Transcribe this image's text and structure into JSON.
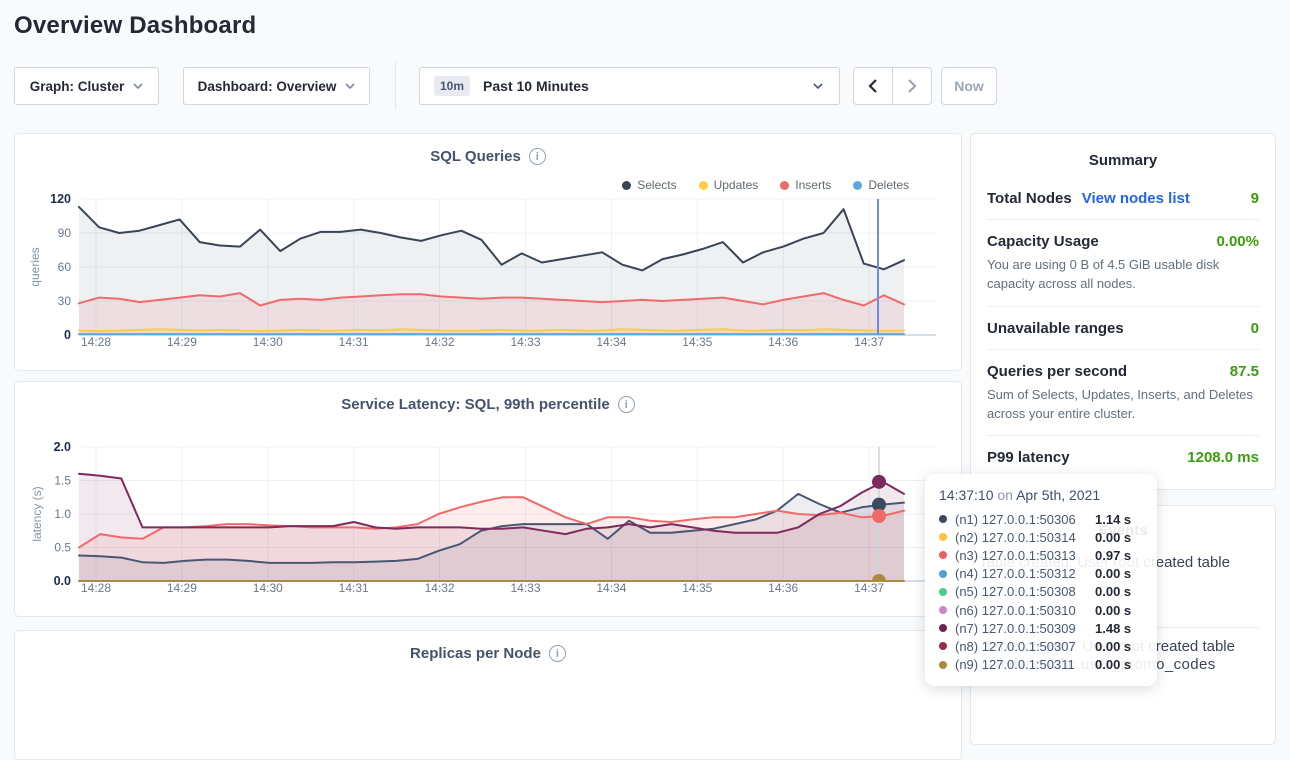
{
  "page": {
    "title": "Overview Dashboard"
  },
  "controls": {
    "graph_dropdown": {
      "text": "Graph: Cluster"
    },
    "dashboard_dropdown": {
      "text": "Dashboard: Overview"
    },
    "time_picker": {
      "badge": "10m",
      "label": "Past 10 Minutes"
    },
    "now_label": "Now"
  },
  "charts": {
    "replicas": {
      "title": "Replicas per Node"
    }
  },
  "chart_data": [
    {
      "type": "area",
      "title": "SQL Queries",
      "ylabel": "queries",
      "ylim": [
        0,
        120
      ],
      "yticks": [
        0,
        30,
        60,
        90,
        120
      ],
      "ytick_labels": [
        "0",
        "30",
        "60",
        "90",
        "120"
      ],
      "x_ticks": [
        "14:28",
        "14:29",
        "14:30",
        "14:31",
        "14:32",
        "14:33",
        "14:34",
        "14:35",
        "14:36",
        "14:37"
      ],
      "legend_position": "top-right",
      "grid": true,
      "hover_time": "14:37:10",
      "series": [
        {
          "name": "Selects",
          "color": "#394455",
          "fill": "rgba(57,68,85,0.08)",
          "z": 4,
          "values": [
            113,
            95,
            90,
            92,
            97,
            102,
            82,
            79,
            78,
            93,
            74,
            85,
            91,
            91,
            93,
            90,
            86,
            83,
            88,
            92,
            84,
            62,
            72,
            64,
            67,
            70,
            73,
            62,
            57,
            67,
            71,
            76,
            82,
            64,
            73,
            78,
            85,
            90,
            111,
            63,
            58,
            66
          ]
        },
        {
          "name": "Updates",
          "color": "#ffcd40",
          "fill": "rgba(255,205,64,0.15)",
          "z": 3,
          "values": [
            4,
            3.5,
            4,
            4.5,
            5,
            4.5,
            4,
            4.5,
            4,
            3.5,
            4,
            4.5,
            4,
            4,
            4.5,
            4,
            5,
            4.5,
            4,
            4,
            4,
            4.5,
            4,
            4,
            4.5,
            4,
            4,
            5,
            4.5,
            4,
            4,
            4.5,
            5,
            4,
            4,
            4.5,
            4,
            5,
            4.5,
            4,
            4,
            4
          ]
        },
        {
          "name": "Inserts",
          "color": "#f16a6a",
          "fill": "rgba(241,106,106,0.12)",
          "z": 2,
          "values": [
            28,
            33,
            32,
            29,
            31,
            33,
            35,
            34,
            37,
            26,
            31,
            32,
            31,
            33,
            34,
            35,
            36,
            36,
            34,
            33,
            32,
            33,
            33,
            32,
            31,
            30,
            29,
            30,
            31,
            30,
            31,
            32,
            33,
            30,
            27,
            31,
            34,
            37,
            31,
            26,
            35,
            27
          ]
        },
        {
          "name": "Deletes",
          "color": "#5ba8df",
          "fill": "none",
          "z": 1,
          "values": [
            0.8,
            0.8,
            0.8,
            0.8,
            0.8,
            0.8,
            0.8,
            0.8,
            0.8,
            0.8,
            0.8,
            0.8,
            0.8,
            0.8,
            0.8,
            0.8,
            0.8,
            0.8,
            0.8,
            0.8,
            0.8,
            0.8,
            0.8,
            0.8,
            0.8,
            0.8,
            0.8,
            0.8,
            0.8,
            0.8,
            0.8,
            0.8,
            0.8,
            0.8,
            0.8,
            0.8,
            0.8,
            0.8,
            0.8,
            0.8,
            0.8,
            0.8
          ]
        }
      ]
    },
    {
      "type": "area",
      "title": "Service Latency: SQL, 99th percentile",
      "ylabel": "latency (s)",
      "ylim": [
        0,
        2.0
      ],
      "yticks": [
        0,
        0.5,
        1.0,
        1.5,
        2.0
      ],
      "ytick_labels": [
        "0.0",
        "0.5",
        "1.0",
        "1.5",
        "2.0"
      ],
      "x_ticks": [
        "14:28",
        "14:29",
        "14:30",
        "14:31",
        "14:32",
        "14:33",
        "14:34",
        "14:35",
        "14:36",
        "14:37"
      ],
      "grid": true,
      "hover_time": "14:37:10",
      "series": [
        {
          "name": "(n1) 127.0.0.1:50306",
          "color": "#475872",
          "fill": "rgba(71,88,114,0.10)",
          "z": 2,
          "values": [
            0.38,
            0.37,
            0.35,
            0.28,
            0.27,
            0.3,
            0.32,
            0.32,
            0.3,
            0.27,
            0.27,
            0.27,
            0.28,
            0.28,
            0.29,
            0.3,
            0.33,
            0.45,
            0.55,
            0.75,
            0.82,
            0.85,
            0.85,
            0.85,
            0.85,
            0.63,
            0.9,
            0.72,
            0.72,
            0.75,
            0.78,
            0.85,
            0.92,
            1.05,
            1.3,
            1.15,
            1.02,
            1.1,
            1.14,
            1.17
          ]
        },
        {
          "name": "(n3) 127.0.0.1:50313",
          "color": "#f16a6a",
          "fill": "rgba(241,106,106,0.12)",
          "z": 3,
          "values": [
            0.5,
            0.7,
            0.65,
            0.63,
            0.8,
            0.8,
            0.82,
            0.85,
            0.85,
            0.83,
            0.82,
            0.8,
            0.8,
            0.8,
            0.78,
            0.8,
            0.85,
            1.0,
            1.1,
            1.18,
            1.25,
            1.25,
            1.1,
            0.95,
            0.85,
            0.95,
            0.95,
            0.9,
            0.88,
            0.92,
            0.95,
            0.95,
            1.0,
            1.05,
            1.0,
            0.98,
            1.02,
            0.95,
            0.97,
            1.05
          ]
        },
        {
          "name": "(n9) 127.0.0.1:50311",
          "color": "#ab8a3e",
          "fill": "none",
          "z": 1,
          "values": [
            0,
            0,
            0,
            0,
            0,
            0,
            0,
            0,
            0,
            0,
            0,
            0,
            0,
            0,
            0,
            0,
            0,
            0,
            0,
            0,
            0,
            0,
            0,
            0,
            0,
            0,
            0,
            0,
            0,
            0,
            0,
            0,
            0,
            0,
            0,
            0,
            0,
            0,
            0,
            0
          ]
        },
        {
          "name": "(n7) 127.0.0.1:50309",
          "color": "#7d2a5d",
          "fill": "rgba(125,42,93,0.10)",
          "z": 4,
          "values": [
            1.6,
            1.57,
            1.53,
            0.8,
            0.8,
            0.8,
            0.8,
            0.8,
            0.8,
            0.8,
            0.82,
            0.82,
            0.82,
            0.88,
            0.8,
            0.78,
            0.8,
            0.8,
            0.8,
            0.78,
            0.78,
            0.8,
            0.75,
            0.7,
            0.78,
            0.8,
            0.85,
            0.8,
            0.85,
            0.8,
            0.75,
            0.72,
            0.72,
            0.72,
            0.8,
            1.0,
            1.12,
            1.32,
            1.48,
            1.3
          ]
        }
      ],
      "hover_dots": [
        {
          "series": "(n7) 127.0.0.1:50309",
          "value": 1.48,
          "color": "#7d2a5d"
        },
        {
          "series": "(n1) 127.0.0.1:50306",
          "value": 1.14,
          "color": "#3b4a63"
        },
        {
          "series": "(n3) 127.0.0.1:50313",
          "value": 0.97,
          "color": "#f16a6a"
        },
        {
          "series": "(n9) 127.0.0.1:50311",
          "value": 0.0,
          "color": "#ab8a3e"
        }
      ]
    }
  ],
  "summary": {
    "title": "Summary",
    "rows": [
      {
        "label": "Total Nodes",
        "link": "View nodes list",
        "value": "9"
      },
      {
        "label": "Capacity Usage",
        "value": "0.00%",
        "description": "You are using 0 B of 4.5 GiB usable disk capacity across all nodes."
      },
      {
        "label": "Unavailable ranges",
        "value": "0"
      },
      {
        "label": "Queries per second",
        "value": "87.5",
        "description": "Sum of Selects, Updates, Inserts, and Deletes across your entire cluster."
      },
      {
        "label": "P99 latency",
        "value": "1208.0 ms"
      }
    ],
    "value_color": "#3a9e0c",
    "link_color": "#2364e8"
  },
  "events": {
    "title": "Events",
    "items": [
      {
        "lines": [
          "Table created: User root created table"
        ]
      },
      {
        "lines": [
          "Table created: User root created table",
          "movr.public.user_promo_codes"
        ]
      }
    ]
  },
  "tooltip": {
    "time": "14:37:10",
    "on_word": "on",
    "date": "Apr 5th, 2021",
    "rows": [
      {
        "node": "(n1) 127.0.0.1:50306",
        "value": "1.14 s",
        "color": "#3b4a63"
      },
      {
        "node": "(n2) 127.0.0.1:50314",
        "value": "0.00 s",
        "color": "#ffc13b"
      },
      {
        "node": "(n3) 127.0.0.1:50313",
        "value": "0.97 s",
        "color": "#ef5e5e"
      },
      {
        "node": "(n4) 127.0.0.1:50312",
        "value": "0.00 s",
        "color": "#509ed9"
      },
      {
        "node": "(n5) 127.0.0.1:50308",
        "value": "0.00 s",
        "color": "#3fd089"
      },
      {
        "node": "(n6) 127.0.0.1:50310",
        "value": "0.00 s",
        "color": "#cf86c6"
      },
      {
        "node": "(n7) 127.0.0.1:50309",
        "value": "1.48 s",
        "color": "#702253"
      },
      {
        "node": "(n8) 127.0.0.1:50307",
        "value": "0.00 s",
        "color": "#9c2b49"
      },
      {
        "node": "(n9) 127.0.0.1:50311",
        "value": "0.00 s",
        "color": "#a98b40"
      }
    ]
  }
}
